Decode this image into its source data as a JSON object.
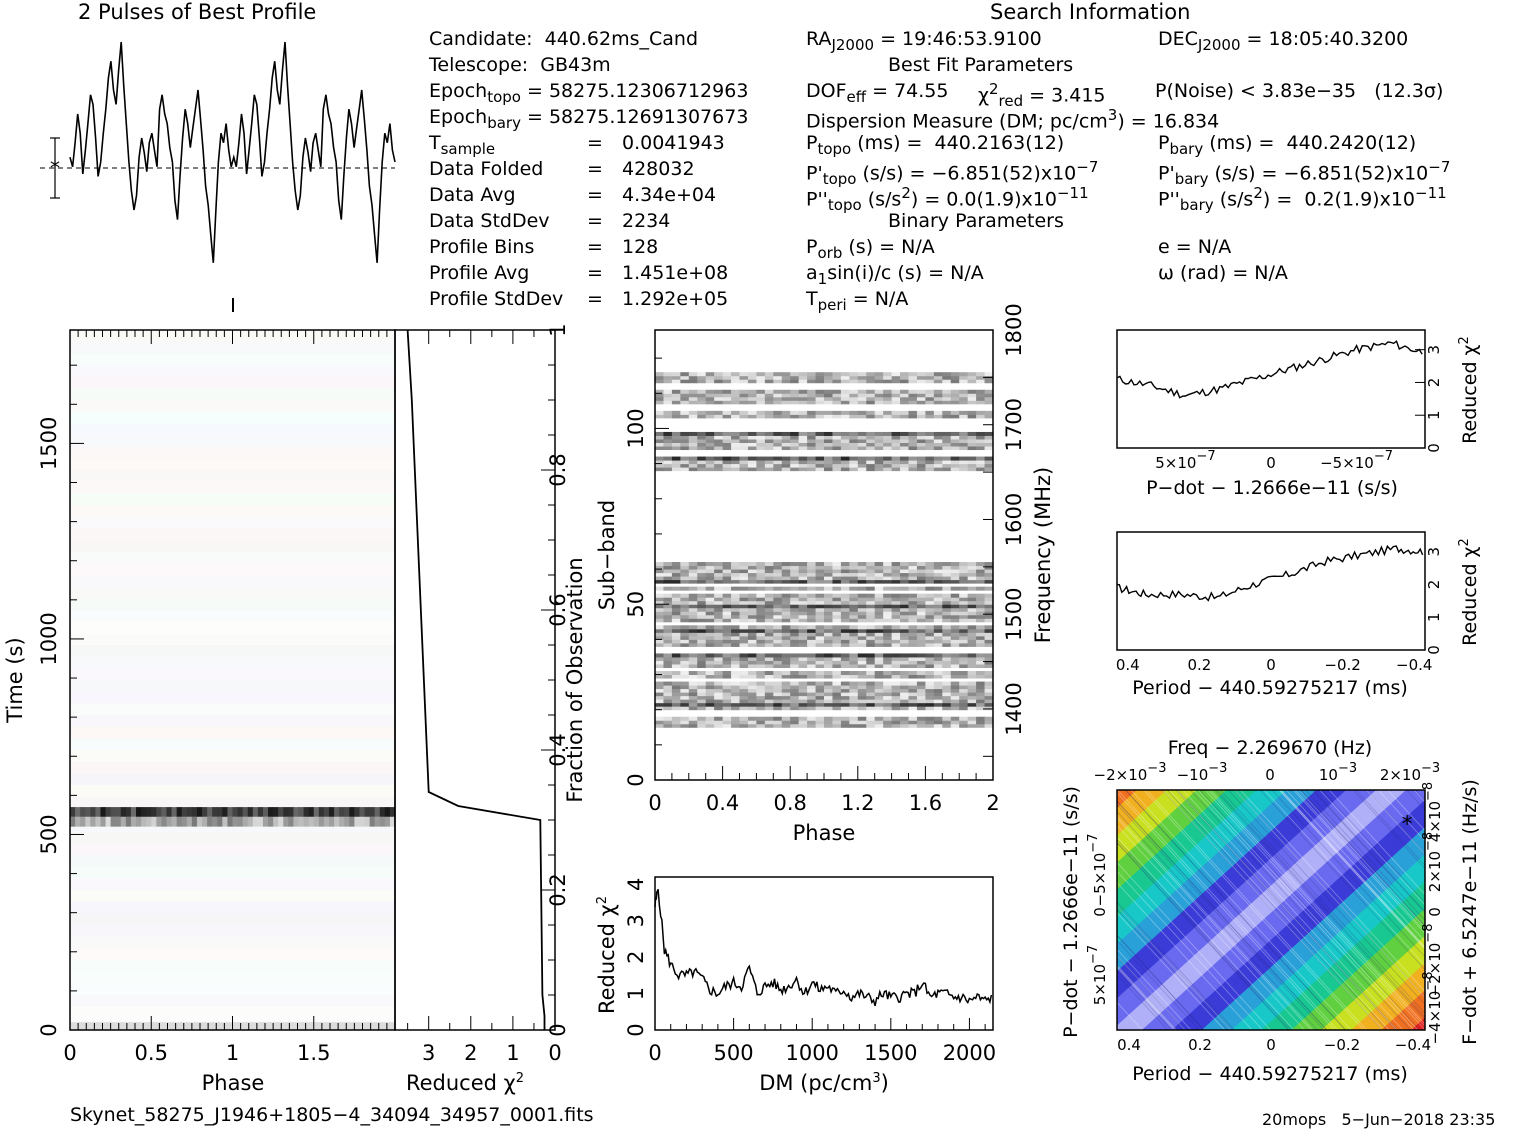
{
  "profile": {
    "title": "2 Pulses of Best Profile",
    "series": [
      0.52,
      0.48,
      0.58,
      0.7,
      0.62,
      0.45,
      0.55,
      0.66,
      0.78,
      0.74,
      0.6,
      0.44,
      0.5,
      0.62,
      0.72,
      0.85,
      0.92,
      0.8,
      0.74,
      0.88,
      1.0,
      0.82,
      0.66,
      0.5,
      0.38,
      0.3,
      0.36,
      0.52,
      0.6,
      0.54,
      0.46,
      0.58,
      0.62,
      0.55,
      0.48,
      0.72,
      0.78,
      0.7,
      0.66,
      0.56,
      0.5,
      0.34,
      0.26,
      0.44,
      0.6,
      0.72,
      0.66,
      0.56,
      0.64,
      0.72,
      0.8,
      0.68,
      0.55,
      0.4,
      0.32,
      0.2,
      0.08,
      0.3,
      0.5,
      0.62,
      0.58,
      0.66,
      0.55,
      0.48,
      0.52,
      0.48,
      0.58,
      0.7,
      0.62,
      0.45,
      0.55,
      0.66,
      0.78,
      0.74,
      0.6,
      0.44,
      0.5,
      0.62,
      0.72,
      0.85,
      0.92,
      0.8,
      0.74,
      0.88,
      1.0,
      0.82,
      0.66,
      0.5,
      0.38,
      0.3,
      0.36,
      0.52,
      0.6,
      0.54,
      0.46,
      0.58,
      0.62,
      0.55,
      0.48,
      0.72,
      0.78,
      0.7,
      0.66,
      0.56,
      0.5,
      0.34,
      0.26,
      0.44,
      0.6,
      0.72,
      0.66,
      0.56,
      0.64,
      0.72,
      0.8,
      0.68,
      0.55,
      0.4,
      0.32,
      0.2,
      0.08,
      0.3,
      0.5,
      0.62,
      0.58,
      0.66,
      0.55,
      0.5
    ]
  },
  "info": {
    "candidate": "Candidate:  440.62ms_Cand",
    "telescope": "Telescope:  GB43m",
    "epoch_topo_label": "Epoch",
    "epoch_topo_sub": "topo",
    "epoch_topo_val": " = 58275.12306712963",
    "epoch_bary_label": "Epoch",
    "epoch_bary_sub": "bary",
    "epoch_bary_val": " = 58275.12691307673",
    "tsample_label": "T",
    "tsample_sub": "sample",
    "tsample_val": "0.0041943",
    "rows": [
      {
        "label": "Data Folded",
        "value": "428032"
      },
      {
        "label": "Data Avg",
        "value": "4.34e+04"
      },
      {
        "label": "Data StdDev",
        "value": "2234"
      },
      {
        "label": "Profile Bins",
        "value": "128"
      },
      {
        "label": "Profile Avg",
        "value": "1.451e+08"
      },
      {
        "label": "Profile StdDev",
        "value": "1.292e+05"
      }
    ],
    "eq": "="
  },
  "search": {
    "title": "Search Information",
    "ra_label": "RA",
    "ra_sub": "J2000",
    "ra_val": " = 19:46:53.9100",
    "dec_label": "DEC",
    "dec_sub": "J2000",
    "dec_val": " = 18:05:40.3200",
    "best_fit_title": "Best Fit Parameters",
    "dof": "DOF",
    "dof_sub": "eff",
    "dof_val": " = 74.55",
    "chi": "χ",
    "chi_sup": "2",
    "chi_sub": "red",
    "chi_val": " = 3.415",
    "pnoise": "P(Noise) < 3.83e−35   (12.3σ)",
    "dm_line": "Dispersion Measure (DM; pc/cm",
    "dm_sup": "3",
    "dm_val": ") = 16.834",
    "ptopo": "P",
    "ptopo_sub": "topo",
    "ptopo_val": " (ms) =  440.2163(12)",
    "pbary": "P",
    "pbary_sub": "bary",
    "pbary_val": " (ms) =  440.2420(12)",
    "pdtopo": "P'",
    "pdtopo_sub": "topo",
    "pdtopo_val": " (s/s) = −6.851(52)x10",
    "pdtopo_exp": "−7",
    "pdbary": "P'",
    "pdbary_sub": "bary",
    "pdbary_val": " (s/s) = −6.851(52)x10",
    "pdbary_exp": "−7",
    "pddtopo": "P''",
    "pddtopo_sub": "topo",
    "pddtopo_val": " (s/s",
    "pddtopo_sup": "2",
    "pddtopo_val2": ") = 0.0(1.9)x10",
    "pddtopo_exp": "−11",
    "pddbary": "P''",
    "pddbary_sub": "bary",
    "pddbary_val": " (s/s",
    "pddbary_sup": "2",
    "pddbary_val2": ") =  0.2(1.9)x10",
    "pddbary_exp": "−11",
    "binary_title": "Binary Parameters",
    "porb": "P",
    "porb_sub": "orb",
    "porb_val": " (s) = N/A",
    "ecc": "e = N/A",
    "a1": "a",
    "a1_sub": "1",
    "a1_val": "sin(i)/c (s) = N/A",
    "omega": "ω (rad) = N/A",
    "tperi": "T",
    "tperi_sub": "peri",
    "tperi_val": " = N/A"
  },
  "time_phase": {
    "xlabel": "Phase",
    "ylabel": "Time (s)",
    "xticks": [
      "0",
      "0.5",
      "1",
      "1.5"
    ],
    "yticks": [
      "0",
      "500",
      "1000",
      "1500"
    ],
    "xlim": [
      0,
      2
    ],
    "ylim": [
      0,
      1790
    ]
  },
  "redchi_time": {
    "xlabel": "Reduced χ",
    "xlabel_sup": "2",
    "xticks": [
      "3",
      "2",
      "1",
      "0"
    ],
    "right_label": "Fraction of Observation",
    "right_ticks": [
      "0",
      "0.2",
      "0.4",
      "0.6",
      "0.8",
      "1"
    ]
  },
  "subband": {
    "xlabel": "Phase",
    "ylabel": "Sub−band",
    "right_label": "Frequency (MHz)",
    "xticks": [
      "0",
      "0.4",
      "0.8",
      "1.2",
      "1.6",
      "2"
    ],
    "yticks": [
      "0",
      "50",
      "100"
    ],
    "right_ticks": [
      "1400",
      "1500",
      "1600",
      "1700",
      "1800"
    ]
  },
  "dm_plot": {
    "xlabel": "DM (pc/cm",
    "xlabel_sup": "3",
    "xlabel_end": ")",
    "ylabel": "Reduced χ",
    "ylabel_sup": "2",
    "xticks": [
      "0",
      "500",
      "1000",
      "1500",
      "2000"
    ],
    "yticks": [
      "0",
      "1",
      "2",
      "3",
      "4"
    ]
  },
  "pdot_plot": {
    "xlabel": "P−dot − 1.2666e−11 (s/s)",
    "ylabel": "Reduced χ",
    "ylabel_sup": "2",
    "xtick_left": "5×10",
    "xtick_left_exp": "−7",
    "xtick_mid": "0",
    "xtick_right": "−5×10",
    "xtick_right_exp": "−7",
    "yticks": [
      "0",
      "1",
      "2",
      "3"
    ]
  },
  "period_plot": {
    "xlabel": "Period − 440.59275217 (ms)",
    "ylabel": "Reduced χ",
    "ylabel_sup": "2",
    "xticks": [
      "0.4",
      "0.2",
      "0",
      "−0.2",
      "−0.4"
    ],
    "yticks": [
      "0",
      "1",
      "2",
      "3"
    ]
  },
  "pp_plot": {
    "title": "Freq − 2.269670 (Hz)",
    "xlabel": "Period − 440.59275217 (ms)",
    "ylabel": "P−dot − 1.2666e−11 (s/s)",
    "right_label": "F−dot + 6.5247e−11 (Hz/s)",
    "xticks": [
      "0.4",
      "0.2",
      "0",
      "−0.2",
      "−0.4"
    ],
    "top_ticks": [
      "−2×10",
      "−10",
      "0",
      "10",
      "2×10"
    ],
    "top_exp": "−3",
    "left_tick_top": "−5×10",
    "left_tick_mid": "0",
    "left_tick_bot": "5×10",
    "left_exp": "−7",
    "right_ticks": [
      "−4×10",
      "−2×10",
      "0",
      "2×10",
      "4×10"
    ],
    "right_exp": "−8",
    "marker": "*"
  },
  "footer": {
    "filename": "Skynet_58275_J1946+1805−4_34094_34957_0001.fits",
    "stamp": "20mops   5−Jun−2018 23:35"
  },
  "colors": {
    "axis": "#000000",
    "band_dark": "#1a1a1a",
    "colormap": [
      "#3b3bd8",
      "#6a6af0",
      "#b0b0f8",
      "#2aa0d8",
      "#18c8c8",
      "#18c890",
      "#60d040",
      "#c8e020",
      "#f0b020",
      "#f07020",
      "#e02020"
    ]
  },
  "chart_data": [
    {
      "type": "line",
      "title": "2 Pulses of Best Profile",
      "x": "phase 0–2 (128 bins, repeated twice)",
      "series": [
        {
          "values_ref": "profile.series"
        }
      ]
    },
    {
      "type": "heatmap",
      "xlabel": "Phase",
      "ylabel": "Time (s)",
      "xlim": [
        0,
        2
      ],
      "ylim": [
        0,
        1790
      ],
      "bright_rows_s": [
        [
          520,
          570
        ]
      ]
    },
    {
      "type": "line",
      "xlabel": "Reduced χ2",
      "ylabel": "Fraction of Observation",
      "points": [
        [
          0.25,
          0.0
        ],
        [
          0.25,
          0.02
        ],
        [
          0.3,
          0.05
        ],
        [
          0.35,
          0.3
        ],
        [
          2.3,
          0.32
        ],
        [
          3.0,
          0.34
        ],
        [
          3.4,
          0.9
        ],
        [
          3.5,
          1.0
        ]
      ]
    },
    {
      "type": "heatmap",
      "xlabel": "Phase",
      "ylabel": "Sub−band",
      "xlim": [
        0,
        2
      ],
      "ylim": [
        0,
        128
      ],
      "active_subbands": [
        [
          15,
          62
        ],
        [
          88,
          116
        ]
      ]
    },
    {
      "type": "line",
      "xlabel": "DM (pc/cm3)",
      "ylabel": "Reduced χ2",
      "xlim": [
        0,
        2150
      ],
      "ylim": [
        0,
        4.2
      ],
      "x": [
        0,
        20,
        60,
        100,
        150,
        200,
        250,
        300,
        350,
        400,
        450,
        500,
        550,
        600,
        650,
        700,
        750,
        800,
        850,
        900,
        950,
        1000,
        1050,
        1100,
        1150,
        1200,
        1250,
        1300,
        1350,
        1400,
        1450,
        1500,
        1550,
        1600,
        1650,
        1700,
        1750,
        1800,
        1850,
        1900,
        1950,
        2000,
        2050,
        2100,
        2150
      ],
      "values": [
        3.4,
        3.9,
        2.2,
        1.8,
        1.5,
        1.5,
        1.6,
        1.4,
        1.1,
        1.0,
        1.2,
        1.3,
        1.2,
        1.7,
        1.0,
        1.2,
        1.3,
        1.1,
        1.2,
        1.4,
        1.0,
        1.3,
        1.1,
        1.2,
        1.0,
        1.1,
        0.9,
        1.0,
        0.9,
        0.8,
        1.0,
        0.9,
        0.9,
        1.0,
        1.0,
        1.3,
        0.9,
        1.0,
        1.0,
        0.9,
        0.9,
        0.8,
        0.9,
        0.8,
        0.9
      ]
    },
    {
      "type": "line",
      "xlabel": "P−dot − 1.2666e−11 (s/s)",
      "ylabel": "Reduced χ2",
      "xlim": [
        9e-07,
        -9e-07
      ],
      "ylim": [
        0,
        3.6
      ],
      "x": [
        9e-07,
        7e-07,
        5e-07,
        3e-07,
        1e-07,
        -1e-07,
        -3e-07,
        -5e-07,
        -7e-07,
        -9e-07
      ],
      "values": [
        2.1,
        1.9,
        1.6,
        1.8,
        2.1,
        2.4,
        2.7,
        3.0,
        3.2,
        2.9
      ]
    },
    {
      "type": "line",
      "xlabel": "Period − 440.59275217 (ms)",
      "ylabel": "Reduced χ2",
      "xlim": [
        0.43,
        -0.43
      ],
      "ylim": [
        0,
        3.6
      ],
      "x": [
        0.43,
        0.35,
        0.25,
        0.15,
        0.05,
        -0.05,
        -0.15,
        -0.25,
        -0.35,
        -0.43
      ],
      "values": [
        1.9,
        1.7,
        1.7,
        1.6,
        2.0,
        2.3,
        2.7,
        2.9,
        3.1,
        3.0
      ]
    },
    {
      "type": "heatmap",
      "title": "Freq − 2.269670 (Hz)",
      "xlabel": "Period − 440.59275217 (ms)",
      "ylabel": "P−dot − 1.2666e−11 (s/s)",
      "xlim": [
        0.43,
        -0.43
      ],
      "ylim": [
        9e-07,
        -9e-07
      ],
      "peak": {
        "x": -0.38,
        "y": -6.5e-07
      }
    }
  ]
}
